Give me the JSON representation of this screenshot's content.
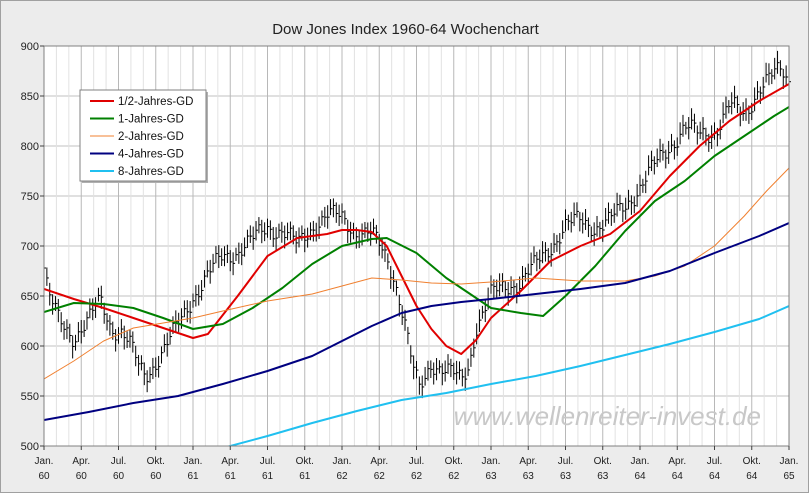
{
  "chart_data": {
    "type": "line",
    "title": "Dow Jones Index 1960-64 Wochenchart",
    "watermark": "www.wellenreiter-invest.de",
    "xlabel": "",
    "ylabel": "",
    "ylim": [
      500,
      900
    ],
    "y_ticks": [
      "500",
      "550",
      "600",
      "650",
      "700",
      "750",
      "800",
      "850",
      "900"
    ],
    "x_range": [
      "1960-01",
      "1965-01"
    ],
    "x_ticks": [
      {
        "month": "Jan.",
        "year": "60"
      },
      {
        "month": "Apr.",
        "year": "60"
      },
      {
        "month": "Jul.",
        "year": "60"
      },
      {
        "month": "Okt.",
        "year": "60"
      },
      {
        "month": "Jan.",
        "year": "61"
      },
      {
        "month": "Apr.",
        "year": "61"
      },
      {
        "month": "Jul.",
        "year": "61"
      },
      {
        "month": "Okt.",
        "year": "61"
      },
      {
        "month": "Jan.",
        "year": "62"
      },
      {
        "month": "Apr.",
        "year": "62"
      },
      {
        "month": "Jul.",
        "year": "62"
      },
      {
        "month": "Okt.",
        "year": "62"
      },
      {
        "month": "Jan.",
        "year": "63"
      },
      {
        "month": "Apr.",
        "year": "63"
      },
      {
        "month": "Jul.",
        "year": "63"
      },
      {
        "month": "Okt.",
        "year": "63"
      },
      {
        "month": "Jan.",
        "year": "64"
      },
      {
        "month": "Apr.",
        "year": "64"
      },
      {
        "month": "Jul.",
        "year": "64"
      },
      {
        "month": "Okt.",
        "year": "64"
      },
      {
        "month": "Jan.",
        "year": "65"
      }
    ],
    "grid": true,
    "legend_position": "top-left",
    "price_series": {
      "name": "",
      "color": "#000000",
      "x_years": [
        1960.0,
        1960.03,
        1960.1,
        1960.2,
        1960.3,
        1960.38,
        1960.45,
        1960.52,
        1960.58,
        1960.63,
        1960.68,
        1960.75,
        1960.82,
        1960.9,
        1961.0,
        1961.1,
        1961.2,
        1961.3,
        1961.4,
        1961.5,
        1961.6,
        1961.7,
        1961.8,
        1961.9,
        1962.0,
        1962.1,
        1962.2,
        1962.3,
        1962.35,
        1962.42,
        1962.47,
        1962.52,
        1962.6,
        1962.7,
        1962.8,
        1962.85,
        1962.9,
        1963.0,
        1963.1,
        1963.2,
        1963.3,
        1963.4,
        1963.5,
        1963.6,
        1963.7,
        1963.8,
        1963.9,
        1964.0,
        1964.1,
        1964.2,
        1964.3,
        1964.4,
        1964.5,
        1964.6,
        1964.7,
        1964.8,
        1964.9,
        1964.95,
        1965.0
      ],
      "close": [
        678,
        650,
        625,
        610,
        625,
        645,
        620,
        615,
        600,
        580,
        570,
        585,
        600,
        620,
        650,
        670,
        690,
        695,
        705,
        720,
        715,
        700,
        720,
        730,
        728,
        715,
        710,
        690,
        670,
        625,
        580,
        555,
        585,
        575,
        565,
        580,
        620,
        650,
        660,
        665,
        680,
        700,
        720,
        725,
        720,
        725,
        740,
        760,
        780,
        800,
        820,
        810,
        815,
        840,
        830,
        860,
        870,
        875,
        865
      ]
    },
    "series": [
      {
        "name": "1/2-Jahres-GD",
        "color": "#e00000",
        "width": 2,
        "x": [
          1960.0,
          1960.2,
          1960.4,
          1960.6,
          1960.8,
          1961.0,
          1961.1,
          1961.3,
          1961.5,
          1961.7,
          1961.9,
          1962.0,
          1962.1,
          1962.2,
          1962.3,
          1962.4,
          1962.5,
          1962.6,
          1962.7,
          1962.8,
          1962.9,
          1963.0,
          1963.2,
          1963.4,
          1963.6,
          1963.8,
          1964.0,
          1964.2,
          1964.4,
          1964.6,
          1964.8,
          1965.0
        ],
        "y": [
          657,
          647,
          638,
          628,
          618,
          608,
          612,
          650,
          690,
          708,
          712,
          716,
          716,
          714,
          700,
          670,
          640,
          617,
          600,
          592,
          606,
          628,
          655,
          685,
          700,
          712,
          735,
          770,
          800,
          825,
          845,
          862
        ]
      },
      {
        "name": "1-Jahres-GD",
        "color": "#008000",
        "width": 2,
        "x": [
          1960.0,
          1960.2,
          1960.4,
          1960.6,
          1960.8,
          1961.0,
          1961.2,
          1961.4,
          1961.6,
          1961.8,
          1962.0,
          1962.2,
          1962.3,
          1962.5,
          1962.7,
          1962.9,
          1963.0,
          1963.2,
          1963.35,
          1963.5,
          1963.7,
          1963.9,
          1964.1,
          1964.3,
          1964.5,
          1964.7,
          1964.9,
          1965.0
        ],
        "y": [
          634,
          643,
          642,
          638,
          628,
          617,
          622,
          638,
          658,
          682,
          700,
          707,
          708,
          693,
          668,
          648,
          638,
          633,
          630,
          650,
          680,
          715,
          745,
          765,
          790,
          810,
          830,
          839
        ]
      },
      {
        "name": "2-Jahres-GD",
        "color": "#f08030",
        "width": 1,
        "x": [
          1960.0,
          1960.2,
          1960.4,
          1960.6,
          1960.8,
          1961.0,
          1961.2,
          1961.5,
          1961.8,
          1962.0,
          1962.2,
          1962.4,
          1962.6,
          1962.8,
          1963.0,
          1963.3,
          1963.6,
          1963.9,
          1964.1,
          1964.3,
          1964.5,
          1964.7,
          1964.85,
          1965.0
        ],
        "y": [
          567,
          585,
          605,
          618,
          623,
          628,
          635,
          645,
          652,
          660,
          668,
          666,
          663,
          662,
          664,
          668,
          665,
          665,
          670,
          680,
          700,
          730,
          755,
          778
        ]
      },
      {
        "name": "4-Jahres-GD",
        "color": "#000080",
        "width": 2,
        "x": [
          1960.0,
          1960.3,
          1960.6,
          1960.9,
          1961.2,
          1961.5,
          1961.8,
          1962.0,
          1962.2,
          1962.4,
          1962.6,
          1962.8,
          1963.0,
          1963.3,
          1963.6,
          1963.9,
          1964.2,
          1964.5,
          1964.8,
          1965.0
        ],
        "y": [
          526,
          534,
          543,
          550,
          562,
          575,
          590,
          605,
          620,
          633,
          640,
          644,
          647,
          652,
          657,
          663,
          675,
          693,
          710,
          723
        ]
      },
      {
        "name": "8-Jahres-GD",
        "color": "#20c0f0",
        "width": 2,
        "x": [
          1961.2,
          1961.5,
          1961.8,
          1962.1,
          1962.4,
          1962.7,
          1963.0,
          1963.3,
          1963.6,
          1963.9,
          1964.2,
          1964.5,
          1964.8,
          1965.0
        ],
        "y": [
          498,
          510,
          523,
          535,
          546,
          553,
          562,
          570,
          580,
          591,
          602,
          614,
          627,
          640
        ]
      }
    ]
  }
}
